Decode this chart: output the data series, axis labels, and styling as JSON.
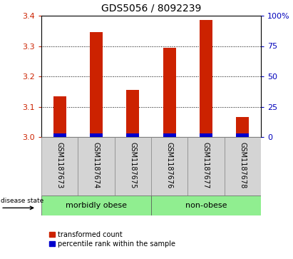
{
  "title": "GDS5056 / 8092239",
  "samples": [
    "GSM1187673",
    "GSM1187674",
    "GSM1187675",
    "GSM1187676",
    "GSM1187677",
    "GSM1187678"
  ],
  "red_values": [
    3.135,
    3.345,
    3.155,
    3.295,
    3.385,
    3.065
  ],
  "blue_values": [
    3.012,
    3.012,
    3.012,
    3.012,
    3.012,
    3.012
  ],
  "base_value": 3.0,
  "ylim_left": [
    3.0,
    3.4
  ],
  "yticks_left": [
    3.0,
    3.1,
    3.2,
    3.3,
    3.4
  ],
  "yticks_right": [
    0,
    25,
    50,
    75,
    100
  ],
  "ytick_labels_right": [
    "0",
    "25",
    "50",
    "75",
    "100%"
  ],
  "groups": [
    {
      "label": "morbidly obese",
      "start": 0,
      "end": 3
    },
    {
      "label": "non-obese",
      "start": 3,
      "end": 6
    }
  ],
  "disease_state_label": "disease state",
  "legend_red": "transformed count",
  "legend_blue": "percentile rank within the sample",
  "bar_width": 0.35,
  "red_color": "#cc2200",
  "blue_color": "#0000cc",
  "group_color": "#90ee90",
  "sample_bg_color": "#d4d4d4",
  "left_tick_color": "#cc2200",
  "right_tick_color": "#0000bb",
  "title_fontsize": 10,
  "tick_fontsize": 8,
  "label_fontsize": 7,
  "group_fontsize": 8
}
